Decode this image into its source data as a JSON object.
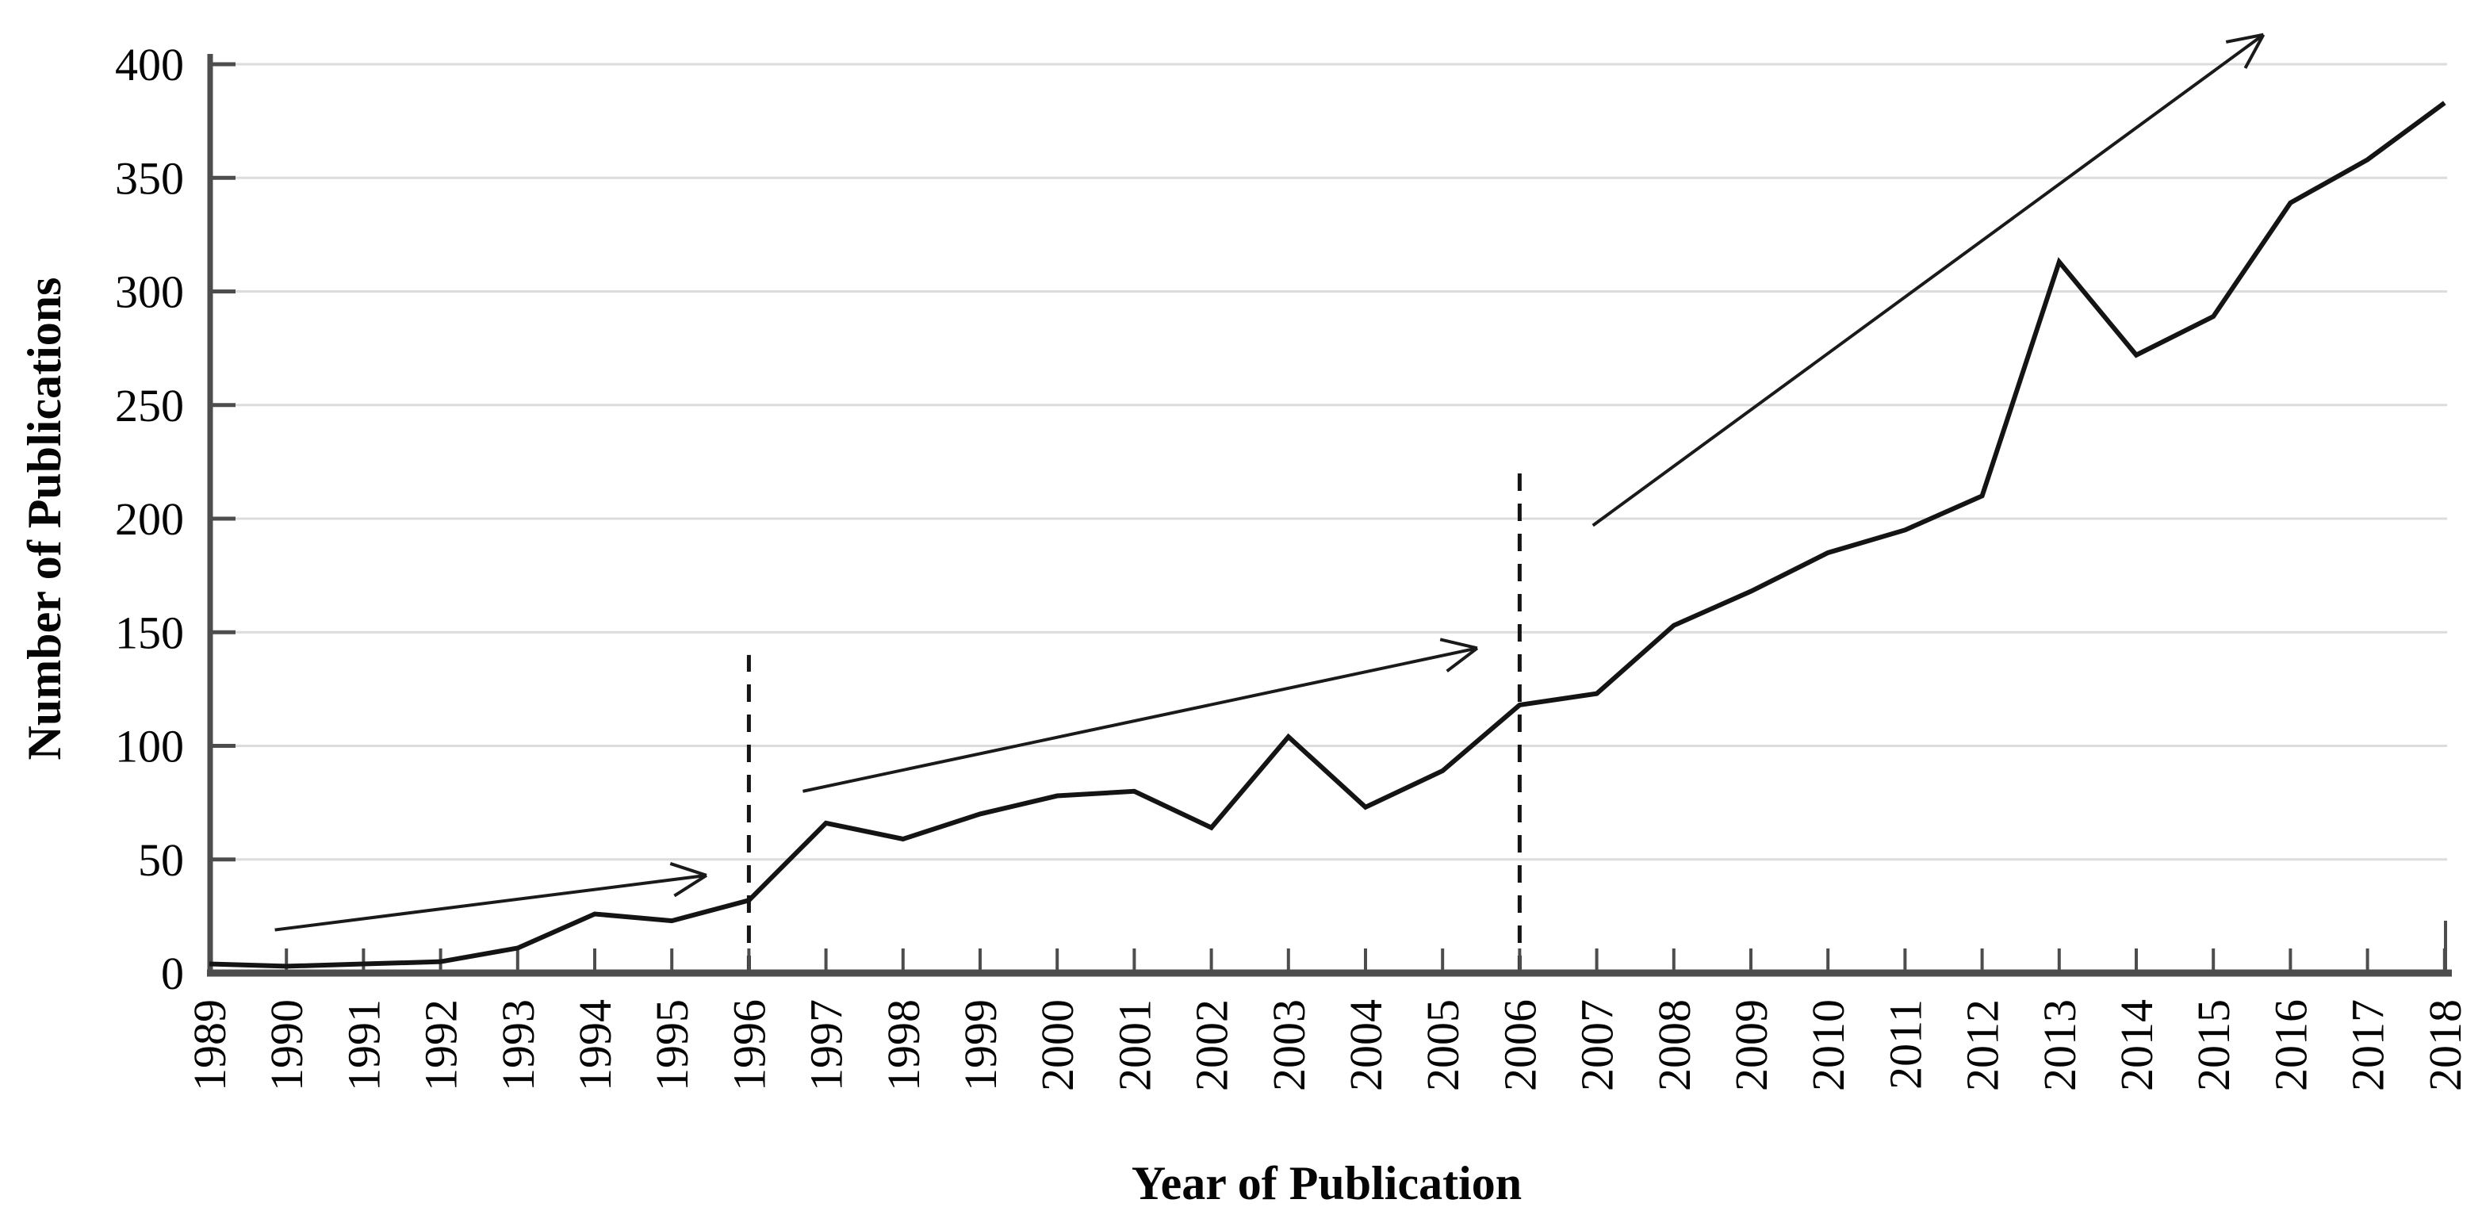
{
  "page": {
    "background": "#ffffff"
  },
  "chart_data": {
    "type": "line",
    "title": "",
    "xlabel": "Year of Publication",
    "ylabel": "Number of Publications",
    "categories": [
      "1989",
      "1990",
      "1991",
      "1992",
      "1993",
      "1994",
      "1995",
      "1996",
      "1997",
      "1998",
      "1999",
      "2000",
      "2001",
      "2002",
      "2003",
      "2004",
      "2005",
      "2006",
      "2007",
      "2008",
      "2009",
      "2010",
      "2011",
      "2012",
      "2013",
      "2014",
      "2015",
      "2016",
      "2017",
      "2018"
    ],
    "series": [
      {
        "name": "Number of Publications",
        "values": [
          4,
          3,
          4,
          5,
          11,
          26,
          23,
          32,
          66,
          59,
          70,
          78,
          80,
          64,
          104,
          73,
          89,
          118,
          123,
          153,
          168,
          185,
          195,
          210,
          313,
          272,
          289,
          339,
          358,
          383
        ]
      }
    ],
    "ylim": [
      0,
      400
    ],
    "yticks": [
      0,
      50,
      100,
      150,
      200,
      250,
      300,
      350,
      400
    ],
    "grid": "horizontal-only",
    "legend": "none",
    "annotations": {
      "dashed_vlines": [
        {
          "year": 1996,
          "from_value": 0,
          "to_value": 140
        },
        {
          "year": 2006,
          "from_value": 0,
          "to_value": 224
        }
      ],
      "trend_arrows": [
        {
          "x1": 1989.85,
          "y1": 19,
          "x2": 1995.45,
          "y2": 43
        },
        {
          "x1": 1996.7,
          "y1": 80,
          "x2": 2005.45,
          "y2": 143
        },
        {
          "x1": 2006.95,
          "y1": 197,
          "x2": 2015.65,
          "y2": 413
        }
      ]
    },
    "colors": {
      "line": "#141414",
      "grid": "#dcdcdc",
      "axis": "#4d4d4d",
      "dashed": "#141414",
      "arrow": "#1a1a1a",
      "text": "#050505"
    }
  }
}
